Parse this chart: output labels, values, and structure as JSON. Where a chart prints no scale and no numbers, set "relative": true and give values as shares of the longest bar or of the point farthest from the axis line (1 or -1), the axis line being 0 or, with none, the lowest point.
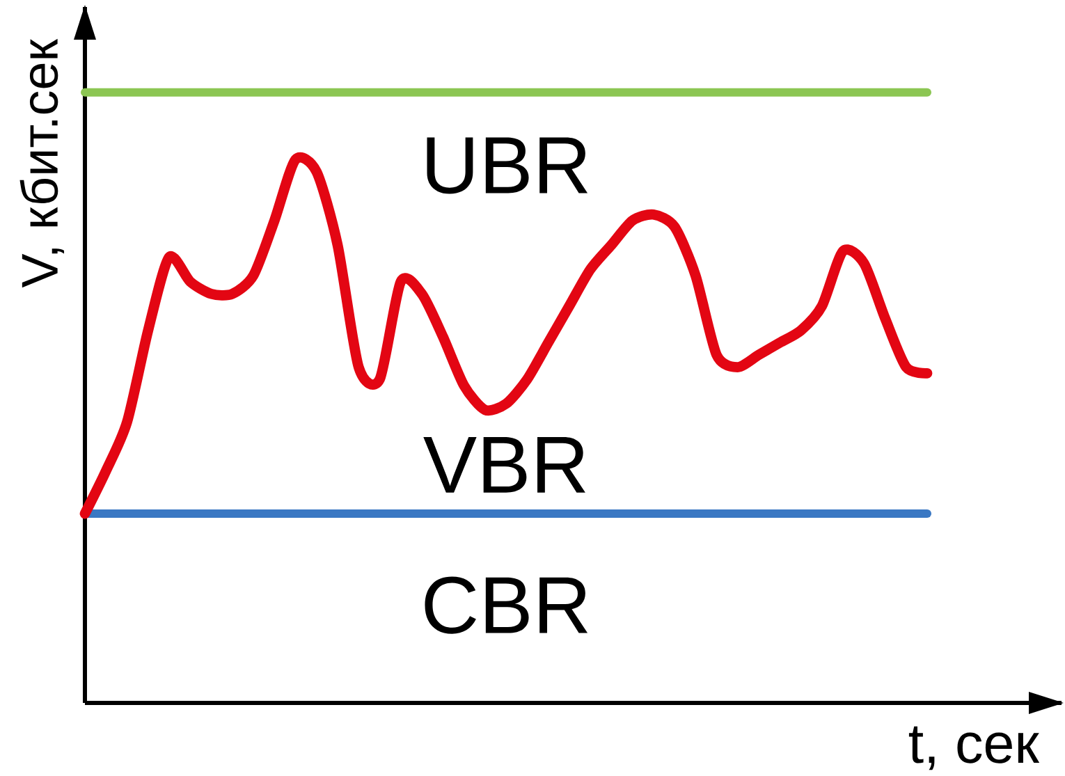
{
  "chart_data": {
    "type": "line",
    "relative": true,
    "xlabel": "t, сек",
    "ylabel": "V, кбит.сек",
    "categories": [
      null,
      null,
      null,
      null,
      null,
      null,
      null,
      null,
      null,
      null,
      null,
      null,
      null,
      null,
      null,
      null,
      null,
      null,
      null,
      null,
      null,
      null,
      null,
      null,
      null,
      null,
      null,
      null,
      null,
      null,
      null,
      null,
      null,
      null,
      null,
      null,
      null,
      null,
      null,
      null,
      null
    ],
    "series": [
      {
        "color": "#8cc653",
        "values": [
          1,
          1,
          1,
          1,
          1,
          1,
          1,
          1,
          1,
          1,
          1,
          1,
          1,
          1,
          1,
          1,
          1,
          1,
          1,
          1,
          1,
          1,
          1,
          1,
          1,
          1,
          1,
          1,
          1,
          1,
          1,
          1,
          1,
          1,
          1,
          1,
          1,
          1,
          1,
          1,
          1
        ]
      },
      {
        "color": "#3a78c3",
        "values": [
          0.31,
          0.31,
          0.31,
          0.31,
          0.31,
          0.31,
          0.31,
          0.31,
          0.31,
          0.31,
          0.31,
          0.31,
          0.31,
          0.31,
          0.31,
          0.31,
          0.31,
          0.31,
          0.31,
          0.31,
          0.31,
          0.31,
          0.31,
          0.31,
          0.31,
          0.31,
          0.31,
          0.31,
          0.31,
          0.31,
          0.31,
          0.31,
          0.31,
          0.31,
          0.31,
          0.31,
          0.31,
          0.31,
          0.31,
          0.31,
          0.31
        ]
      },
      {
        "color": "#e30613",
        "values": [
          0.31,
          0.38,
          0.46,
          0.61,
          0.73,
          0.69,
          0.67,
          0.67,
          0.7,
          0.79,
          0.89,
          0.87,
          0.75,
          0.55,
          0.53,
          0.69,
          0.67,
          0.6,
          0.52,
          0.48,
          0.49,
          0.53,
          0.59,
          0.65,
          0.71,
          0.75,
          0.79,
          0.8,
          0.78,
          0.7,
          0.57,
          0.55,
          0.57,
          0.59,
          0.61,
          0.65,
          0.74,
          0.72,
          0.63,
          0.55,
          0.54
        ]
      }
    ],
    "annotations": [
      "UBR",
      "VBR",
      "CBR"
    ],
    "marker": "none",
    "line_style": "solid"
  }
}
